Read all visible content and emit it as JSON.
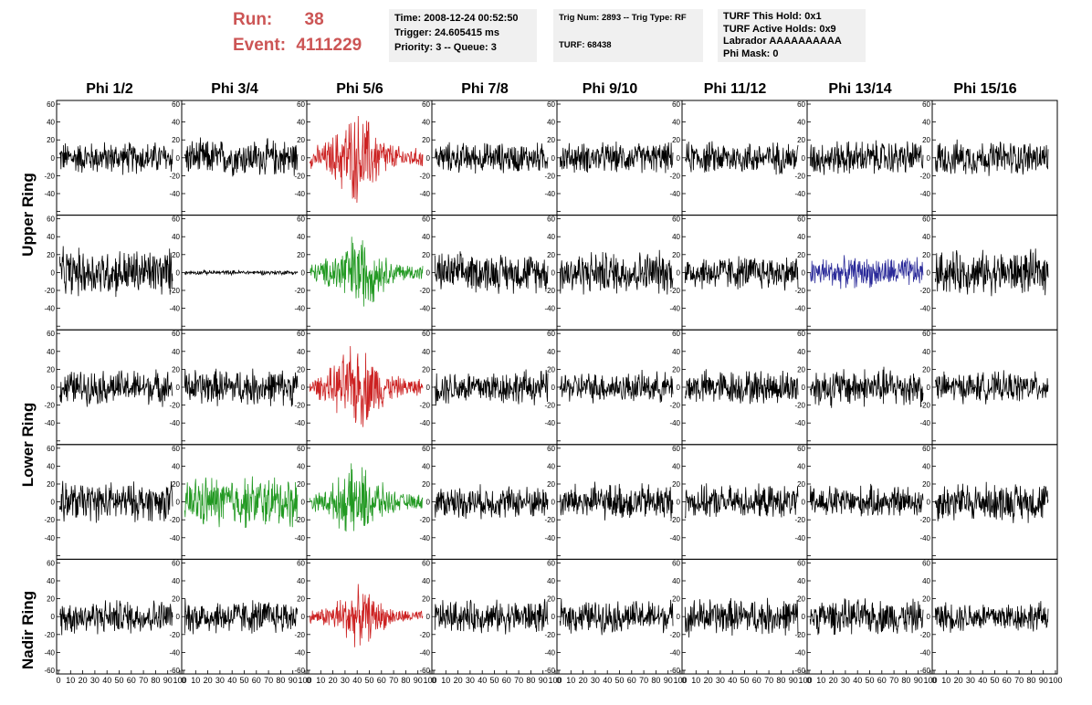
{
  "header": {
    "run_label": "Run:",
    "run_value": "38",
    "event_label": "Event:",
    "event_value": "4111229",
    "time": "Time: 2008-12-24 00:52:50",
    "trigger": "Trigger: 24.605415 ms",
    "priority": "Priority: 3 -- Queue: 3",
    "trig_num": "Trig Num: 2893 -- Trig Type: RF",
    "turf": "TURF: 68438",
    "turf_hold": "TURF This Hold: 0x1",
    "turf_active": "TURF Active Holds: 0x9",
    "labrador": "Labrador AAAAAAAAAA",
    "phi_mask": "Phi Mask: 0"
  },
  "columns": [
    "Phi 1/2",
    "Phi 3/4",
    "Phi 5/6",
    "Phi 7/8",
    "Phi 9/10",
    "Phi 11/12",
    "Phi 13/14",
    "Phi 15/16"
  ],
  "rings": [
    "Upper Ring",
    "Lower Ring",
    "Nadir Ring"
  ],
  "colors": {
    "black": "#000000",
    "red": "#cc2222",
    "green": "#229922",
    "blue": "#2a2a99",
    "header_red": "#cc5555"
  },
  "chart_data": {
    "type": "line",
    "title": "",
    "xlabel": "",
    "ylabel": "",
    "xlim": [
      0,
      100
    ],
    "ylim": [
      -60,
      60
    ],
    "y_ticks": [
      "60",
      "40",
      "20",
      "0",
      "-20",
      "-40",
      "-60"
    ],
    "x_ticks": [
      "0",
      "10",
      "20",
      "30",
      "40",
      "50",
      "60",
      "70",
      "80",
      "90",
      "100"
    ],
    "grid": false,
    "rows": [
      {
        "cells": [
          {
            "color": "black",
            "amplitude": 15,
            "envelope": "flat"
          },
          {
            "color": "black",
            "amplitude": 17,
            "envelope": "flat"
          },
          {
            "color": "red",
            "amplitude": 35,
            "envelope": "pulse"
          },
          {
            "color": "black",
            "amplitude": 14,
            "envelope": "flat"
          },
          {
            "color": "black",
            "amplitude": 14,
            "envelope": "flat"
          },
          {
            "color": "black",
            "amplitude": 15,
            "envelope": "flat"
          },
          {
            "color": "black",
            "amplitude": 16,
            "envelope": "flat"
          },
          {
            "color": "black",
            "amplitude": 16,
            "envelope": "flat"
          }
        ]
      },
      {
        "cells": [
          {
            "color": "black",
            "amplitude": 22,
            "envelope": "flat"
          },
          {
            "color": "black",
            "amplitude": 2,
            "envelope": "flat"
          },
          {
            "color": "green",
            "amplitude": 30,
            "envelope": "pulse"
          },
          {
            "color": "black",
            "amplitude": 18,
            "envelope": "flat"
          },
          {
            "color": "black",
            "amplitude": 20,
            "envelope": "flat"
          },
          {
            "color": "black",
            "amplitude": 16,
            "envelope": "flat"
          },
          {
            "color": "blue",
            "amplitude": 14,
            "envelope": "flat"
          },
          {
            "color": "black",
            "amplitude": 20,
            "envelope": "flat"
          }
        ]
      },
      {
        "cells": [
          {
            "color": "black",
            "amplitude": 16,
            "envelope": "flat"
          },
          {
            "color": "black",
            "amplitude": 17,
            "envelope": "flat"
          },
          {
            "color": "red",
            "amplitude": 32,
            "envelope": "pulse"
          },
          {
            "color": "black",
            "amplitude": 16,
            "envelope": "flat"
          },
          {
            "color": "black",
            "amplitude": 14,
            "envelope": "flat"
          },
          {
            "color": "black",
            "amplitude": 16,
            "envelope": "flat"
          },
          {
            "color": "black",
            "amplitude": 18,
            "envelope": "flat"
          },
          {
            "color": "black",
            "amplitude": 14,
            "envelope": "flat"
          }
        ]
      },
      {
        "cells": [
          {
            "color": "black",
            "amplitude": 18,
            "envelope": "flat"
          },
          {
            "color": "green",
            "amplitude": 24,
            "envelope": "flat"
          },
          {
            "color": "green",
            "amplitude": 28,
            "envelope": "pulse"
          },
          {
            "color": "black",
            "amplitude": 15,
            "envelope": "flat"
          },
          {
            "color": "black",
            "amplitude": 17,
            "envelope": "flat"
          },
          {
            "color": "black",
            "amplitude": 15,
            "envelope": "flat"
          },
          {
            "color": "black",
            "amplitude": 15,
            "envelope": "flat"
          },
          {
            "color": "black",
            "amplitude": 18,
            "envelope": "flat"
          }
        ]
      },
      {
        "cells": [
          {
            "color": "black",
            "amplitude": 16,
            "envelope": "flat"
          },
          {
            "color": "black",
            "amplitude": 16,
            "envelope": "flat"
          },
          {
            "color": "red",
            "amplitude": 22,
            "envelope": "pulse"
          },
          {
            "color": "black",
            "amplitude": 15,
            "envelope": "flat"
          },
          {
            "color": "black",
            "amplitude": 15,
            "envelope": "flat"
          },
          {
            "color": "black",
            "amplitude": 17,
            "envelope": "flat"
          },
          {
            "color": "black",
            "amplitude": 16,
            "envelope": "flat"
          },
          {
            "color": "black",
            "amplitude": 14,
            "envelope": "flat"
          }
        ]
      }
    ]
  }
}
